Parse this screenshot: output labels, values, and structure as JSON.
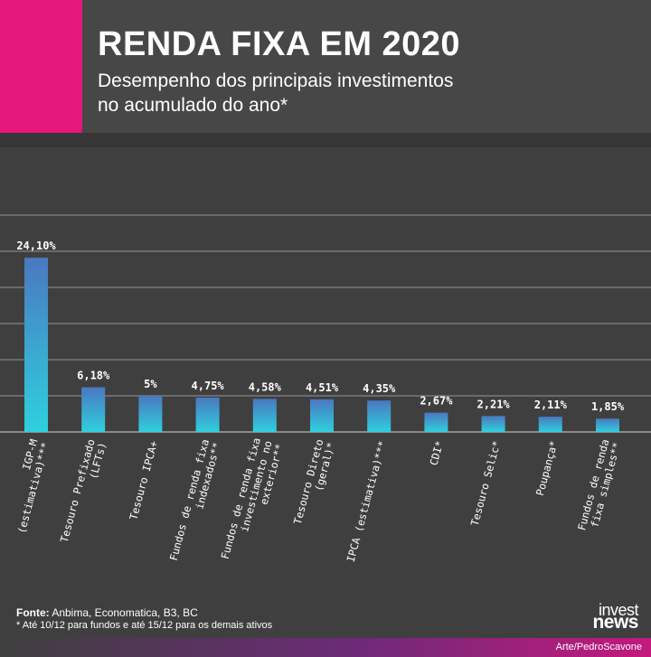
{
  "header": {
    "title": "RENDA FIXA EM 2020",
    "subtitle_line1": "Desempenho dos principais investimentos",
    "subtitle_line2": "no acumulado do ano*"
  },
  "colors": {
    "accent": "#e5177c",
    "bar_top": "#4a78c0",
    "bar_bottom": "#2fd0de",
    "background": "#3f3f3f"
  },
  "chart_data": {
    "type": "bar",
    "title": "RENDA FIXA EM 2020",
    "ylim": [
      0,
      30
    ],
    "grid": true,
    "legend": "none",
    "categories": [
      [
        "IGP-M",
        "(estimativa)***"
      ],
      [
        "Tesouro Prefixado",
        "(LFTs)"
      ],
      [
        "Tesouro IPCA+"
      ],
      [
        "Fundos de renda fixa",
        "indexados**"
      ],
      [
        "Fundos de renda fixa",
        "investimento no",
        "exterior**"
      ],
      [
        "Tesouro Direto",
        "(geral)*"
      ],
      [
        "IPCA (estimativa)***"
      ],
      [
        "CDI*"
      ],
      [
        "Tesouro Selic*"
      ],
      [
        "Poupança*"
      ],
      [
        "Fundos de renda",
        "fixa simples**"
      ]
    ],
    "values": [
      24.1,
      6.18,
      5,
      4.75,
      4.58,
      4.51,
      4.35,
      2.67,
      2.21,
      2.11,
      1.85
    ],
    "labels": [
      "24,10%",
      "6,18%",
      "5%",
      "4,75%",
      "4,58%",
      "4,51%",
      "4,35%",
      "2,67%",
      "2,21%",
      "2,11%",
      "1,85%"
    ]
  },
  "footer": {
    "source_label": "Fonte:",
    "source_text": " Anbima, Economatica, B3, BC",
    "note": "* Até 10/12 para fundos e até 15/12 para os demais ativos",
    "logo_line1": "invest",
    "logo_line2": "news",
    "credit": "Arte/PedroScavone"
  }
}
